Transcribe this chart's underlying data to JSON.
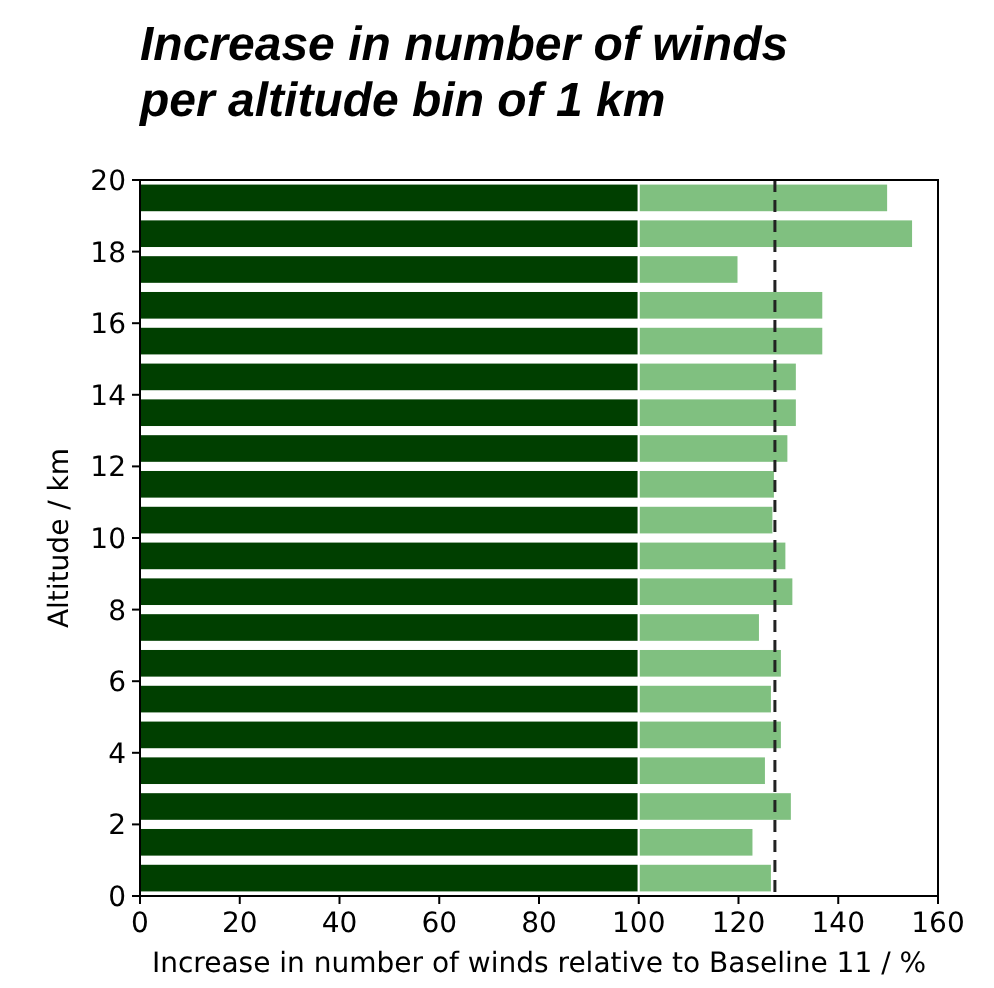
{
  "chart_data": {
    "type": "bar",
    "orientation": "horizontal",
    "stacked": true,
    "title": "Increase in number of winds per altitude bin of 1 km",
    "xlabel": "Increase in number of winds relative to Baseline 11 / %",
    "ylabel": "Altitude / km",
    "x": [
      0.5,
      1.5,
      2.5,
      3.5,
      4.5,
      5.5,
      6.5,
      7.5,
      8.5,
      9.5,
      10.5,
      11.5,
      12.5,
      13.5,
      14.5,
      15.5,
      16.5,
      17.5,
      18.5,
      19.5
    ],
    "series": [
      {
        "color": "#003f00",
        "values": [
          100,
          100,
          100,
          100,
          100,
          100,
          100,
          100,
          100,
          100,
          100,
          100,
          100,
          100,
          100,
          100,
          100,
          100,
          100,
          100
        ]
      },
      {
        "color": "#80c080",
        "values": [
          26.7,
          23,
          30.7,
          25.5,
          28.7,
          26.7,
          28.7,
          24.3,
          31,
          29.6,
          27,
          27.3,
          30,
          31.7,
          31.7,
          37,
          37,
          20,
          55,
          50
        ]
      }
    ],
    "xlim": [
      0,
      160
    ],
    "xticks": [
      0,
      20,
      40,
      60,
      80,
      100,
      120,
      140,
      160
    ],
    "ylim": [
      0,
      20
    ],
    "yticks": [
      0,
      2,
      4,
      6,
      8,
      10,
      12,
      14,
      16,
      18,
      20
    ],
    "ref_lines": [
      {
        "axis": "x",
        "value": 127.3,
        "color": "#222222",
        "line_style": "dashed"
      }
    ],
    "grid": false
  }
}
